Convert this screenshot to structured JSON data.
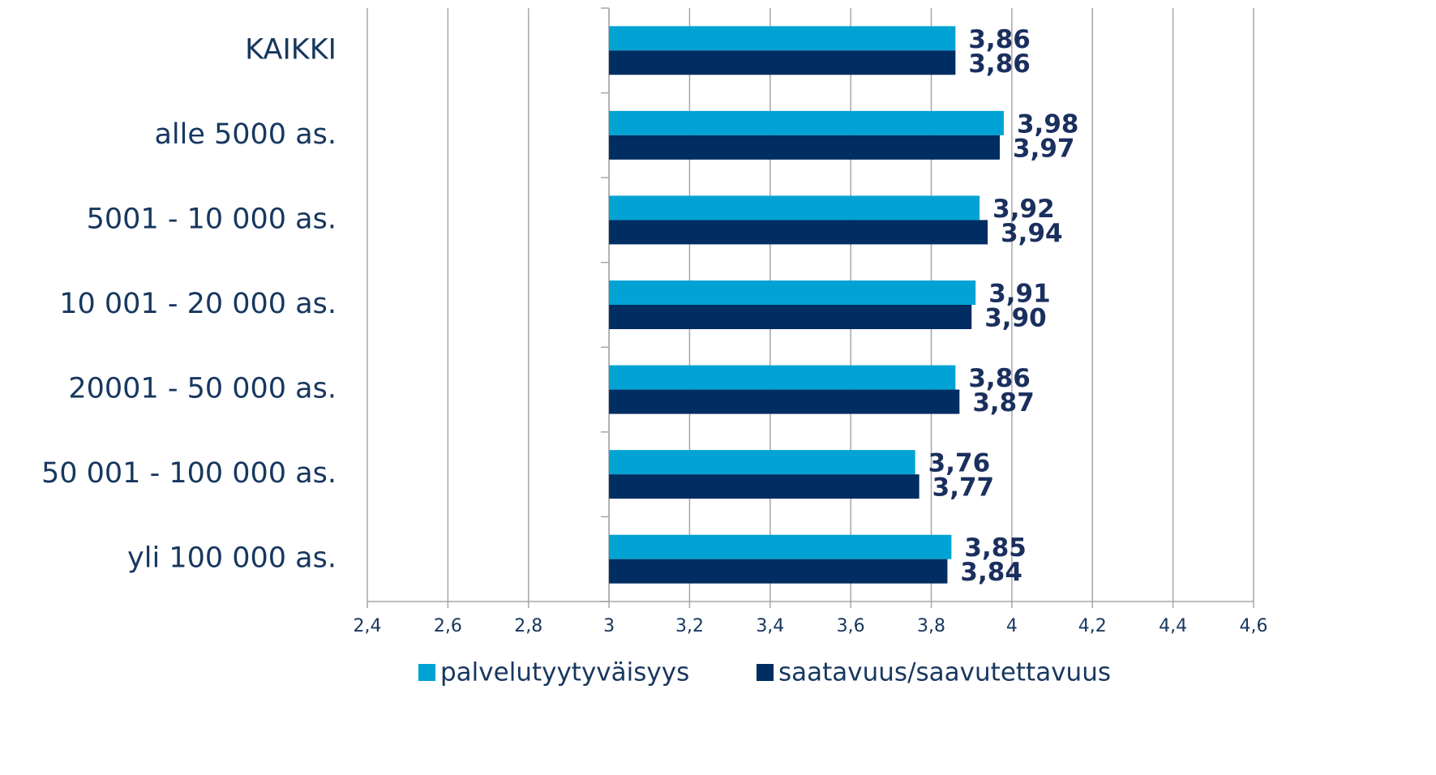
{
  "chart_data": {
    "type": "hbar",
    "categories": [
      "KAIKKI",
      "alle 5000 as.",
      "5001 - 10 000 as.",
      "10 001 - 20 000 as.",
      "20001 - 50 000 as.",
      "50 001 - 100 000 as.",
      "yli 100 000 as."
    ],
    "series": [
      {
        "name": "palvelutyytyväisyys",
        "color": "#00a3d4",
        "values": [
          3.86,
          3.98,
          3.92,
          3.91,
          3.86,
          3.76,
          3.85
        ],
        "value_labels": [
          "3,86",
          "3,98",
          "3,92",
          "3,91",
          "3,86",
          "3,76",
          "3,85"
        ]
      },
      {
        "name": "saatavuus/saavutettavuus",
        "color": "#002d62",
        "values": [
          3.86,
          3.97,
          3.94,
          3.9,
          3.87,
          3.77,
          3.84
        ],
        "value_labels": [
          "3,86",
          "3,97",
          "3,94",
          "3,90",
          "3,87",
          "3,77",
          "3,84"
        ]
      }
    ],
    "xlim": [
      2.4,
      4.6
    ],
    "xticks": [
      {
        "value": 2.4,
        "label": "2,4"
      },
      {
        "value": 2.6,
        "label": "2,6"
      },
      {
        "value": 2.8,
        "label": "2,8"
      },
      3,
      {
        "value": 3.2,
        "label": "3,2"
      },
      {
        "value": 3.4,
        "label": "3,4"
      },
      {
        "value": 3.6,
        "label": "3,6"
      },
      {
        "value": 3.8,
        "label": "3,8"
      },
      4,
      {
        "value": 4.2,
        "label": "4,2"
      },
      {
        "value": 4.4,
        "label": "4,4"
      },
      {
        "value": 4.6,
        "label": "4,6"
      }
    ],
    "y_axis_at": 3,
    "grid": true,
    "legend": "bottom"
  }
}
